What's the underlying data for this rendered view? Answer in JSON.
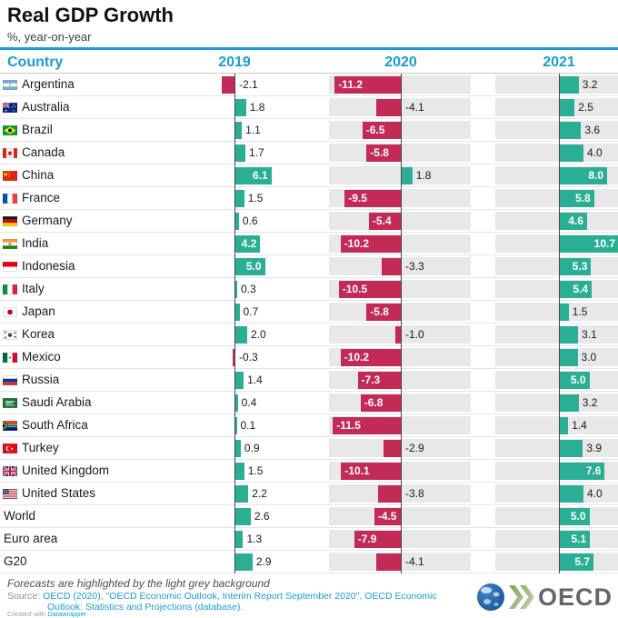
{
  "title": "Real GDP Growth",
  "subtitle": "%, year-on-year",
  "columns": [
    "Country",
    "2019",
    "2020",
    "2021"
  ],
  "colors": {
    "accent_blue": "#1b9cd2",
    "positive_green": "#2aaf94",
    "negative_red": "#c42a58",
    "forecast_grey": "#e8e8e8"
  },
  "rows": [
    {
      "country": "Argentina",
      "flag": "ar",
      "values": [
        "-2.1",
        "-11.2",
        "3.2"
      ]
    },
    {
      "country": "Australia",
      "flag": "au",
      "values": [
        "1.8",
        "-4.1",
        "2.5"
      ]
    },
    {
      "country": "Brazil",
      "flag": "br",
      "values": [
        "1.1",
        "-6.5",
        "3.6"
      ]
    },
    {
      "country": "Canada",
      "flag": "ca",
      "values": [
        "1.7",
        "-5.8",
        "4.0"
      ]
    },
    {
      "country": "China",
      "flag": "cn",
      "values": [
        "6.1",
        "1.8",
        "8.0"
      ]
    },
    {
      "country": "France",
      "flag": "fr",
      "values": [
        "1.5",
        "-9.5",
        "5.8"
      ]
    },
    {
      "country": "Germany",
      "flag": "de",
      "values": [
        "0.6",
        "-5.4",
        "4.6"
      ]
    },
    {
      "country": "India",
      "flag": "in",
      "values": [
        "4.2",
        "-10.2",
        "10.7"
      ]
    },
    {
      "country": "Indonesia",
      "flag": "id",
      "values": [
        "5.0",
        "-3.3",
        "5.3"
      ]
    },
    {
      "country": "Italy",
      "flag": "it",
      "values": [
        "0.3",
        "-10.5",
        "5.4"
      ]
    },
    {
      "country": "Japan",
      "flag": "jp",
      "values": [
        "0.7",
        "-5.8",
        "1.5"
      ]
    },
    {
      "country": "Korea",
      "flag": "kr",
      "values": [
        "2.0",
        "-1.0",
        "3.1"
      ]
    },
    {
      "country": "Mexico",
      "flag": "mx",
      "values": [
        "-0.3",
        "-10.2",
        "3.0"
      ]
    },
    {
      "country": "Russia",
      "flag": "ru",
      "values": [
        "1.4",
        "-7.3",
        "5.0"
      ]
    },
    {
      "country": "Saudi Arabia",
      "flag": "sa",
      "values": [
        "0.4",
        "-6.8",
        "3.2"
      ]
    },
    {
      "country": "South Africa",
      "flag": "za",
      "values": [
        "0.1",
        "-11.5",
        "1.4"
      ]
    },
    {
      "country": "Turkey",
      "flag": "tr",
      "values": [
        "0.9",
        "-2.9",
        "3.9"
      ]
    },
    {
      "country": "United Kingdom",
      "flag": "gb",
      "values": [
        "1.5",
        "-10.1",
        "7.6"
      ]
    },
    {
      "country": "United States",
      "flag": "us",
      "values": [
        "2.2",
        "-3.8",
        "4.0"
      ]
    },
    {
      "country": "World",
      "flag": null,
      "values": [
        "2.6",
        "-4.5",
        "5.0"
      ]
    },
    {
      "country": "Euro area",
      "flag": null,
      "values": [
        "1.3",
        "-7.9",
        "5.1"
      ]
    },
    {
      "country": "G20",
      "flag": null,
      "values": [
        "2.9",
        "-4.1",
        "5.7"
      ]
    }
  ],
  "footnote": "Forecasts are highlighted by the light grey background",
  "source_label": "Source:",
  "source_link": "OECD (2020), \"OECD Economic Outlook, Interim Report September 2020\", OECD Economic Outlook: Statistics and Projections (database).",
  "attribution": {
    "prefix": "Created with",
    "tool": "Datawrapper"
  },
  "logo_text": "OECD",
  "chart_data": {
    "type": "bar",
    "title": "Real GDP Growth",
    "subtitle": "%, year-on-year",
    "categories": [
      "Argentina",
      "Australia",
      "Brazil",
      "Canada",
      "China",
      "France",
      "Germany",
      "India",
      "Indonesia",
      "Italy",
      "Japan",
      "Korea",
      "Mexico",
      "Russia",
      "Saudi Arabia",
      "South Africa",
      "Turkey",
      "United Kingdom",
      "United States",
      "World",
      "Euro area",
      "G20"
    ],
    "series": [
      {
        "name": "2019",
        "values": [
          -2.1,
          1.8,
          1.1,
          1.7,
          6.1,
          1.5,
          0.6,
          4.2,
          5.0,
          0.3,
          0.7,
          2.0,
          -0.3,
          1.4,
          0.4,
          0.1,
          0.9,
          1.5,
          2.2,
          2.6,
          1.3,
          2.9
        ]
      },
      {
        "name": "2020",
        "values": [
          -11.2,
          -4.1,
          -6.5,
          -5.8,
          1.8,
          -9.5,
          -5.4,
          -10.2,
          -3.3,
          -10.5,
          -5.8,
          -1.0,
          -10.2,
          -7.3,
          -6.8,
          -11.5,
          -2.9,
          -10.1,
          -3.8,
          -4.5,
          -7.9,
          -4.1
        ]
      },
      {
        "name": "2021",
        "values": [
          3.2,
          2.5,
          3.6,
          4.0,
          8.0,
          5.8,
          4.6,
          10.7,
          5.3,
          5.4,
          1.5,
          3.1,
          3.0,
          5.0,
          3.2,
          1.4,
          3.9,
          7.6,
          4.0,
          5.0,
          5.1,
          5.7
        ]
      }
    ],
    "forecast_series": [
      "2020",
      "2021"
    ],
    "positive_color": "#2aaf94",
    "negative_color": "#c42a58",
    "orientation": "horizontal",
    "note": "Forecasts are highlighted by the light grey background"
  }
}
